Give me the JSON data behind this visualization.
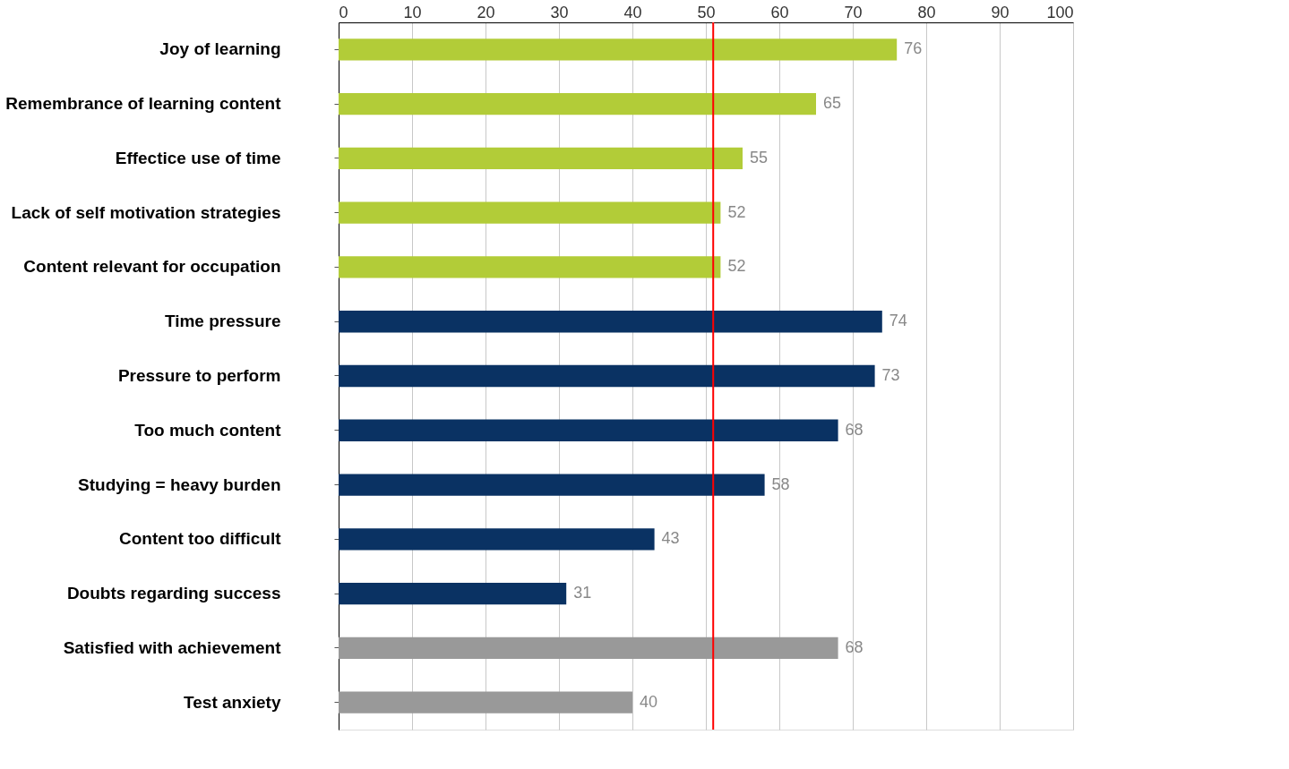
{
  "chart_data": {
    "type": "bar",
    "orientation": "horizontal",
    "categories": [
      "Joy of learning",
      "Remembrance of learning content",
      "Effectice use of time",
      "Lack of self motivation strategies",
      "Content relevant for occupation",
      "Time pressure",
      "Pressure to perform",
      "Too much content",
      "Studying = heavy burden",
      "Content too difficult",
      "Doubts regarding success",
      "Satisfied with achievement",
      "Test anxiety"
    ],
    "values": [
      76,
      65,
      55,
      52,
      52,
      74,
      73,
      68,
      58,
      43,
      31,
      68,
      40
    ],
    "colors": [
      "#b2cc38",
      "#b2cc38",
      "#b2cc38",
      "#b2cc38",
      "#b2cc38",
      "#0a3263",
      "#0a3263",
      "#0a3263",
      "#0a3263",
      "#0a3263",
      "#0a3263",
      "#999999",
      "#999999"
    ],
    "xlim": [
      0,
      100
    ],
    "xticks": [
      0,
      10,
      20,
      30,
      40,
      50,
      60,
      70,
      80,
      90,
      100
    ],
    "grid": "x",
    "data_labels": true,
    "ref_lines": [
      {
        "axis": "x",
        "value": 51,
        "color": "#ff0000"
      }
    ]
  }
}
